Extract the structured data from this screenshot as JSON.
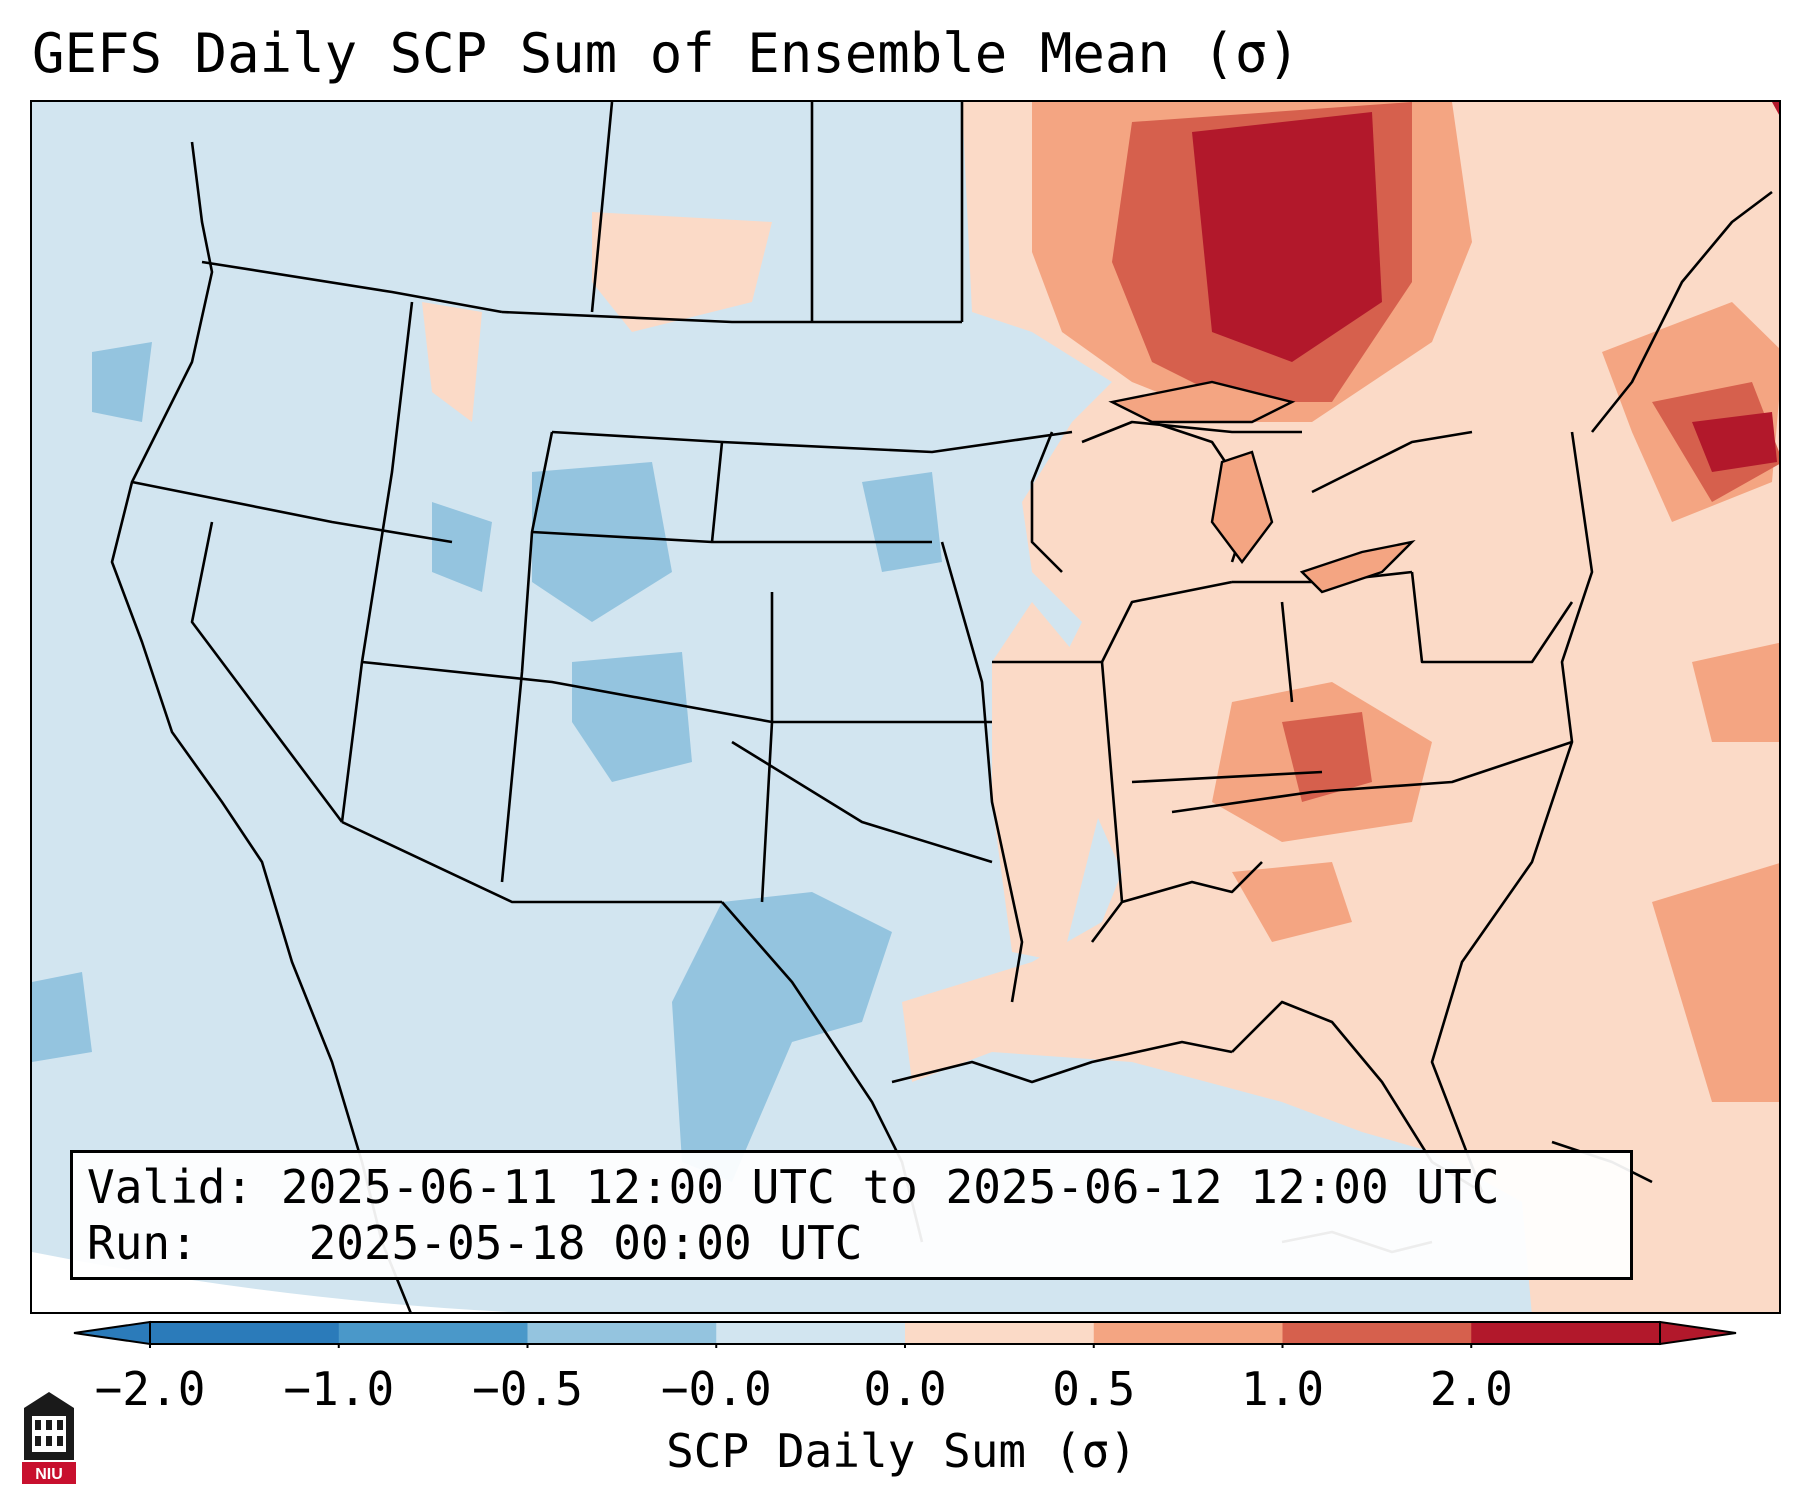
{
  "title": "GEFS Daily SCP Sum of Ensemble Mean (σ)",
  "info": {
    "valid_label": "Valid:",
    "valid_value": "2025-06-11 12:00 UTC to 2025-06-12 12:00 UTC",
    "run_label": "Run:",
    "run_value": "2025-05-18 00:00 UTC"
  },
  "colorbar": {
    "label": "SCP Daily Sum (σ)",
    "ticks": [
      "−2.0",
      "−1.0",
      "−0.5",
      "−0.0",
      "0.0",
      "0.5",
      "1.0",
      "2.0"
    ],
    "colors": [
      "#2b7bba",
      "#4a98c9",
      "#94c4df",
      "#d2e5f0",
      "#fbdac7",
      "#f4a582",
      "#d6604d",
      "#b2182b"
    ]
  },
  "logo_text": "NIU"
}
